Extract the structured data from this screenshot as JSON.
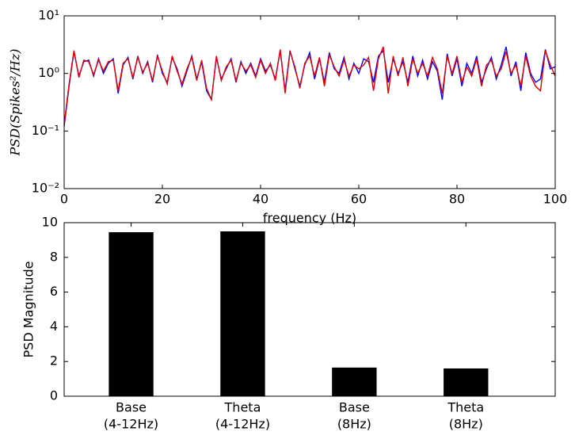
{
  "chart_data": [
    {
      "type": "line",
      "yscale": "log",
      "ylabel": "PSD(Spikes²/Hz)",
      "xlabel": "frequency (Hz)",
      "xlim": [
        0,
        100
      ],
      "xticks": [
        0,
        20,
        40,
        60,
        80,
        100
      ],
      "ylim": [
        0.01,
        10
      ],
      "yticks": [
        {
          "value": 0.01,
          "label": "10⁻²"
        },
        {
          "value": 0.1,
          "label": "10⁻¹"
        },
        {
          "value": 1,
          "label": "10⁰"
        },
        {
          "value": 10,
          "label": "10¹"
        }
      ],
      "x": [
        0,
        1,
        2,
        3,
        4,
        5,
        6,
        7,
        8,
        9,
        10,
        11,
        12,
        13,
        14,
        15,
        16,
        17,
        18,
        19,
        20,
        21,
        22,
        23,
        24,
        25,
        26,
        27,
        28,
        29,
        30,
        31,
        32,
        33,
        34,
        35,
        36,
        37,
        38,
        39,
        40,
        41,
        42,
        43,
        44,
        45,
        46,
        47,
        48,
        49,
        50,
        51,
        52,
        53,
        54,
        55,
        56,
        57,
        58,
        59,
        60,
        61,
        62,
        63,
        64,
        65,
        66,
        67,
        68,
        69,
        70,
        71,
        72,
        73,
        74,
        75,
        76,
        77,
        78,
        79,
        80,
        81,
        82,
        83,
        84,
        85,
        86,
        87,
        88,
        89,
        90,
        91,
        92,
        93,
        94,
        95,
        96,
        97,
        98,
        99,
        100
      ],
      "series": [
        {
          "color": "#0000ff",
          "values": [
            0.12,
            0.6,
            2.4,
            0.9,
            1.6,
            1.7,
            0.9,
            1.8,
            1.0,
            1.5,
            1.8,
            0.45,
            1.4,
            1.9,
            0.8,
            2.0,
            1.0,
            1.6,
            0.7,
            2.1,
            1.0,
            0.7,
            1.9,
            1.2,
            0.6,
            1.1,
            2.0,
            0.8,
            1.6,
            0.5,
            0.35,
            1.9,
            0.8,
            1.2,
            1.8,
            0.7,
            1.6,
            1.0,
            1.5,
            0.9,
            1.8,
            1.1,
            1.4,
            0.8,
            2.5,
            0.5,
            2.5,
            1.2,
            0.6,
            1.4,
            2.3,
            0.8,
            1.8,
            0.7,
            2.3,
            1.2,
            1.0,
            1.9,
            0.8,
            1.5,
            1.0,
            1.8,
            1.6,
            0.7,
            2.0,
            2.5,
            0.7,
            1.8,
            1.0,
            1.6,
            0.7,
            2.0,
            0.9,
            1.7,
            0.8,
            1.6,
            1.1,
            0.35,
            2.2,
            0.9,
            1.8,
            0.6,
            1.5,
            1.0,
            2.0,
            0.7,
            1.2,
            1.9,
            0.8,
            1.4,
            2.9,
            0.9,
            1.6,
            0.5,
            2.3,
            1.0,
            0.7,
            0.8,
            2.6,
            1.2,
            1.3
          ]
        },
        {
          "color": "#e00000",
          "values": [
            0.13,
            0.65,
            2.5,
            0.85,
            1.7,
            1.6,
            0.95,
            1.7,
            1.1,
            1.6,
            1.7,
            0.5,
            1.5,
            1.8,
            0.85,
            1.9,
            1.05,
            1.5,
            0.75,
            2.0,
            1.1,
            0.65,
            2.0,
            1.1,
            0.65,
            1.2,
            1.9,
            0.75,
            1.7,
            0.55,
            0.35,
            2.0,
            0.75,
            1.3,
            1.7,
            0.75,
            1.5,
            1.1,
            1.4,
            0.85,
            1.7,
            1.0,
            1.5,
            0.75,
            2.6,
            0.45,
            2.4,
            1.3,
            0.55,
            1.5,
            2.0,
            0.9,
            1.9,
            0.6,
            2.1,
            1.3,
            0.9,
            1.7,
            0.9,
            1.4,
            1.2,
            1.4,
            1.9,
            0.5,
            1.8,
            2.9,
            0.45,
            2.0,
            0.9,
            1.9,
            0.6,
            1.8,
            1.0,
            1.5,
            0.9,
            1.9,
            1.2,
            0.45,
            2.0,
            1.0,
            2.0,
            0.7,
            1.3,
            0.9,
            1.8,
            0.6,
            1.4,
            1.7,
            0.9,
            1.2,
            2.4,
            1.0,
            1.4,
            0.6,
            2.0,
            0.9,
            0.6,
            0.5,
            2.5,
            1.4,
            0.9
          ]
        }
      ]
    },
    {
      "type": "bar",
      "ylabel": "PSD Magnitude",
      "color": "#000000",
      "categories": [
        [
          "Base",
          "(4-12Hz)"
        ],
        [
          "Theta",
          "(4-12Hz)"
        ],
        [
          "Base",
          "(8Hz)"
        ],
        [
          "Theta",
          "(8Hz)"
        ]
      ],
      "values": [
        9.45,
        9.5,
        1.65,
        1.6
      ],
      "ylim": [
        0,
        10
      ],
      "yticks": [
        0,
        2,
        4,
        6,
        8,
        10
      ]
    }
  ]
}
